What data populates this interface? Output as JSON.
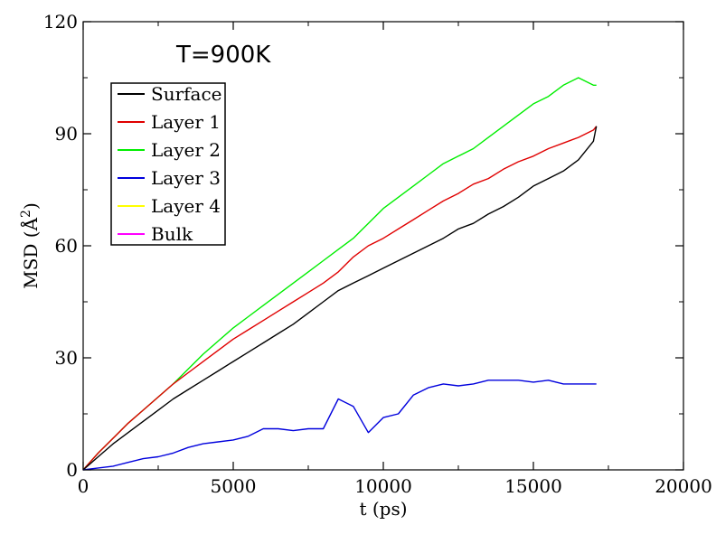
{
  "chart_data": {
    "type": "line",
    "annotation": "T=900K",
    "xlabel": "t (ps)",
    "ylabel_main": "MSD (",
    "ylabel_unit": "Å",
    "ylabel_exp": "2",
    "ylabel_close": ")",
    "xlim": [
      0,
      20000
    ],
    "ylim": [
      0,
      120
    ],
    "xticks": [
      0,
      5000,
      10000,
      15000,
      20000
    ],
    "xtick_labels": [
      "0",
      "5000",
      "10000",
      "15000",
      "20000"
    ],
    "yticks": [
      0,
      30,
      60,
      90,
      120
    ],
    "ytick_labels": [
      "0",
      "30",
      "60",
      "90",
      "120"
    ],
    "grid": false,
    "legend_position": "top-left",
    "series": [
      {
        "name": "Surface",
        "color": "#000000",
        "x": [
          0,
          500,
          1000,
          1500,
          2000,
          2500,
          3000,
          3500,
          4000,
          4500,
          5000,
          5500,
          6000,
          6500,
          7000,
          7500,
          8000,
          8500,
          9000,
          9500,
          10000,
          10500,
          11000,
          11500,
          12000,
          12500,
          13000,
          13500,
          14000,
          14500,
          15000,
          15500,
          16000,
          16500,
          17000,
          17100
        ],
        "y": [
          0,
          3.5,
          7,
          10,
          13,
          16,
          19,
          21.5,
          24,
          26.5,
          29,
          31.5,
          34,
          36.5,
          39,
          42,
          45,
          48,
          50,
          52,
          54,
          56,
          58,
          60,
          62,
          64.5,
          66,
          68.5,
          70.5,
          73,
          76,
          78,
          80,
          83,
          88,
          92
        ]
      },
      {
        "name": "Layer 1",
        "color": "#e00000",
        "x": [
          0,
          500,
          1000,
          1500,
          2000,
          2500,
          3000,
          3500,
          4000,
          4500,
          5000,
          5500,
          6000,
          6500,
          7000,
          7500,
          8000,
          8500,
          9000,
          9500,
          10000,
          10500,
          11000,
          11500,
          12000,
          12500,
          13000,
          13500,
          14000,
          14500,
          15000,
          15500,
          16000,
          16500,
          17000,
          17100
        ],
        "y": [
          0,
          4.5,
          8.5,
          12.5,
          16,
          19.5,
          23,
          26,
          29,
          32,
          35,
          37.5,
          40,
          42.5,
          45,
          47.5,
          50,
          53,
          57,
          60,
          62,
          64.5,
          67,
          69.5,
          72,
          74,
          76.5,
          78,
          80.5,
          82.5,
          84,
          86,
          87.5,
          89,
          91,
          92
        ]
      },
      {
        "name": "Layer 2",
        "color": "#00ee00",
        "x": [
          0,
          500,
          1000,
          1500,
          2000,
          2500,
          3000,
          3500,
          4000,
          4500,
          5000,
          5500,
          6000,
          6500,
          7000,
          7500,
          8000,
          8500,
          9000,
          9500,
          10000,
          10500,
          11000,
          11500,
          12000,
          12500,
          13000,
          13500,
          14000,
          14500,
          15000,
          15500,
          16000,
          16500,
          17000,
          17100
        ],
        "y": [
          0,
          4.5,
          8.5,
          12.5,
          16,
          19.5,
          23,
          27,
          31,
          34.5,
          38,
          41,
          44,
          47,
          50,
          53,
          56,
          59,
          62,
          66,
          70,
          73,
          76,
          79,
          82,
          84,
          86,
          89,
          92,
          95,
          98,
          100,
          103,
          105,
          103,
          103
        ]
      },
      {
        "name": "Layer 3",
        "color": "#0000dd",
        "x": [
          0,
          500,
          1000,
          1500,
          2000,
          2500,
          3000,
          3500,
          4000,
          4500,
          5000,
          5500,
          6000,
          6500,
          7000,
          7500,
          8000,
          8500,
          9000,
          9500,
          10000,
          10500,
          11000,
          11500,
          12000,
          12500,
          13000,
          13500,
          14000,
          14500,
          15000,
          15500,
          16000,
          16500,
          17000,
          17100
        ],
        "y": [
          0,
          0.5,
          1,
          2,
          3,
          3.5,
          4.5,
          6,
          7,
          7.5,
          8,
          9,
          11,
          11,
          10.5,
          11,
          11,
          19,
          17,
          10,
          14,
          15,
          20,
          22,
          23,
          22.5,
          23,
          24,
          24,
          24,
          23.5,
          24,
          23,
          23,
          23,
          23
        ]
      },
      {
        "name": "Layer 4",
        "color": "#ffff00",
        "x": [],
        "y": []
      },
      {
        "name": "Bulk",
        "color": "#ff00ff",
        "x": [],
        "y": []
      }
    ]
  }
}
